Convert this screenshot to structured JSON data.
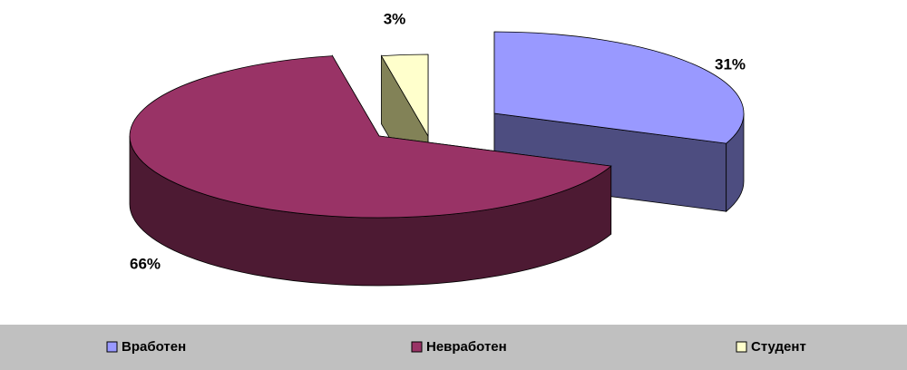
{
  "chart_data": {
    "type": "pie3d",
    "categories": [
      "Вработен",
      "Невработен",
      "Студент"
    ],
    "values": [
      31,
      66,
      3
    ],
    "value_labels": [
      "31%",
      "66%",
      "3%"
    ],
    "colors": [
      "#9999ff",
      "#993366",
      "#ffffcc"
    ],
    "legend": "bottom"
  }
}
